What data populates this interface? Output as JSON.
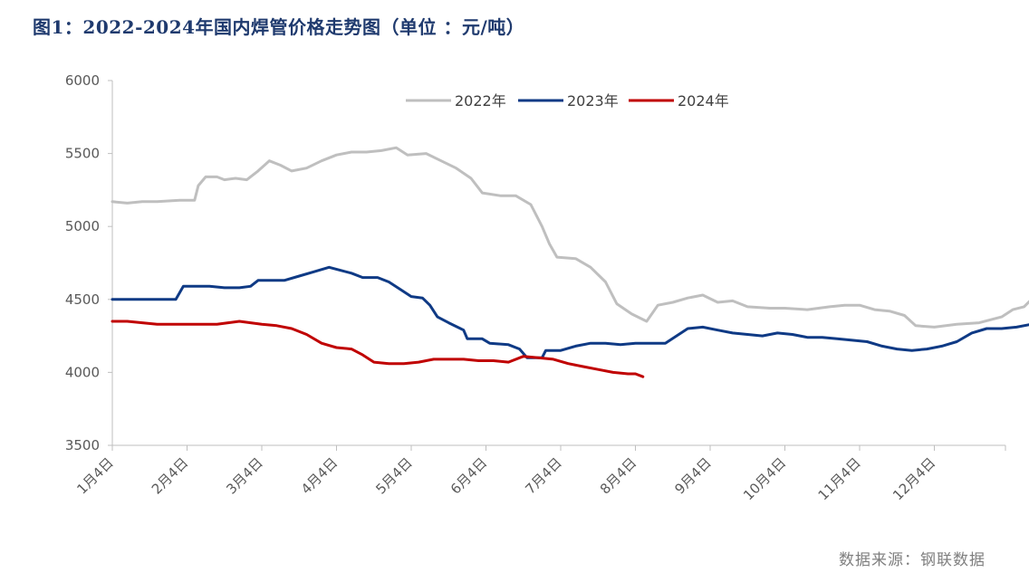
{
  "title": "图1：2022-2024年国内焊管价格走势图（单位 ：元/吨）",
  "source": "数据来源：钢联数据",
  "chart_data": {
    "type": "line",
    "title": "图1：2022-2024年国内焊管价格走势图（单位 ：元/吨）",
    "xlabel": "",
    "ylabel": "",
    "ylim": [
      3500,
      6000
    ],
    "yticks": [
      3500,
      4000,
      4500,
      5000,
      5500,
      6000
    ],
    "categories": [
      "1月4日",
      "2月4日",
      "3月4日",
      "4月4日",
      "5月4日",
      "6月4日",
      "7月4日",
      "8月4日",
      "9月4日",
      "10月4日",
      "11月4日",
      "12月4日"
    ],
    "grid": false,
    "legend_position": "top",
    "series": [
      {
        "name": "2022年",
        "color": "#bfbfbf",
        "points": [
          [
            0,
            5170
          ],
          [
            0.2,
            5160
          ],
          [
            0.4,
            5170
          ],
          [
            0.6,
            5170
          ],
          [
            0.9,
            5180
          ],
          [
            1.1,
            5180
          ],
          [
            1.15,
            5280
          ],
          [
            1.25,
            5340
          ],
          [
            1.4,
            5340
          ],
          [
            1.5,
            5320
          ],
          [
            1.65,
            5330
          ],
          [
            1.8,
            5320
          ],
          [
            1.95,
            5380
          ],
          [
            2.1,
            5450
          ],
          [
            2.25,
            5420
          ],
          [
            2.4,
            5380
          ],
          [
            2.6,
            5400
          ],
          [
            2.8,
            5450
          ],
          [
            3.0,
            5490
          ],
          [
            3.2,
            5510
          ],
          [
            3.4,
            5510
          ],
          [
            3.6,
            5520
          ],
          [
            3.8,
            5540
          ],
          [
            3.95,
            5490
          ],
          [
            4.2,
            5500
          ],
          [
            4.4,
            5450
          ],
          [
            4.6,
            5400
          ],
          [
            4.8,
            5330
          ],
          [
            4.95,
            5230
          ],
          [
            5.2,
            5210
          ],
          [
            5.4,
            5210
          ],
          [
            5.6,
            5150
          ],
          [
            5.75,
            5000
          ],
          [
            5.85,
            4880
          ],
          [
            5.95,
            4790
          ],
          [
            6.2,
            4780
          ],
          [
            6.4,
            4720
          ],
          [
            6.6,
            4620
          ],
          [
            6.75,
            4470
          ],
          [
            6.95,
            4400
          ],
          [
            7.15,
            4350
          ],
          [
            7.3,
            4460
          ],
          [
            7.5,
            4480
          ],
          [
            7.7,
            4510
          ],
          [
            7.9,
            4530
          ],
          [
            8.1,
            4480
          ],
          [
            8.3,
            4490
          ],
          [
            8.5,
            4450
          ],
          [
            8.8,
            4440
          ],
          [
            9.0,
            4440
          ],
          [
            9.3,
            4430
          ],
          [
            9.6,
            4450
          ],
          [
            9.8,
            4460
          ],
          [
            10.0,
            4460
          ],
          [
            10.2,
            4430
          ],
          [
            10.4,
            4420
          ],
          [
            10.6,
            4390
          ],
          [
            10.75,
            4320
          ],
          [
            11.0,
            4310
          ],
          [
            11.3,
            4330
          ],
          [
            11.6,
            4340
          ],
          [
            11.9,
            4380
          ],
          [
            12.05,
            4430
          ],
          [
            12.2,
            4450
          ],
          [
            12.3,
            4500
          ],
          [
            12.5,
            4490
          ],
          [
            12.7,
            4490
          ],
          [
            12.9,
            4490
          ]
        ]
      },
      {
        "name": "2023年",
        "color": "#0f3a85",
        "points": [
          [
            0,
            4500
          ],
          [
            0.3,
            4500
          ],
          [
            0.6,
            4500
          ],
          [
            0.85,
            4500
          ],
          [
            0.95,
            4590
          ],
          [
            1.1,
            4590
          ],
          [
            1.3,
            4590
          ],
          [
            1.5,
            4580
          ],
          [
            1.7,
            4580
          ],
          [
            1.85,
            4590
          ],
          [
            1.95,
            4630
          ],
          [
            2.1,
            4630
          ],
          [
            2.3,
            4630
          ],
          [
            2.5,
            4660
          ],
          [
            2.7,
            4690
          ],
          [
            2.9,
            4720
          ],
          [
            3.05,
            4700
          ],
          [
            3.2,
            4680
          ],
          [
            3.35,
            4650
          ],
          [
            3.55,
            4650
          ],
          [
            3.7,
            4620
          ],
          [
            3.85,
            4570
          ],
          [
            4.0,
            4520
          ],
          [
            4.15,
            4510
          ],
          [
            4.25,
            4460
          ],
          [
            4.35,
            4380
          ],
          [
            4.5,
            4340
          ],
          [
            4.7,
            4290
          ],
          [
            4.75,
            4230
          ],
          [
            4.95,
            4230
          ],
          [
            5.05,
            4200
          ],
          [
            5.3,
            4190
          ],
          [
            5.45,
            4160
          ],
          [
            5.55,
            4100
          ],
          [
            5.75,
            4100
          ],
          [
            5.8,
            4150
          ],
          [
            6.0,
            4150
          ],
          [
            6.2,
            4180
          ],
          [
            6.4,
            4200
          ],
          [
            6.6,
            4200
          ],
          [
            6.8,
            4190
          ],
          [
            7.0,
            4200
          ],
          [
            7.2,
            4200
          ],
          [
            7.4,
            4200
          ],
          [
            7.55,
            4250
          ],
          [
            7.7,
            4300
          ],
          [
            7.9,
            4310
          ],
          [
            8.1,
            4290
          ],
          [
            8.3,
            4270
          ],
          [
            8.5,
            4260
          ],
          [
            8.7,
            4250
          ],
          [
            8.9,
            4270
          ],
          [
            9.1,
            4260
          ],
          [
            9.3,
            4240
          ],
          [
            9.5,
            4240
          ],
          [
            9.7,
            4230
          ],
          [
            9.9,
            4220
          ],
          [
            10.1,
            4210
          ],
          [
            10.3,
            4180
          ],
          [
            10.5,
            4160
          ],
          [
            10.7,
            4150
          ],
          [
            10.9,
            4160
          ],
          [
            11.1,
            4180
          ],
          [
            11.3,
            4210
          ],
          [
            11.5,
            4270
          ],
          [
            11.7,
            4300
          ],
          [
            11.9,
            4300
          ],
          [
            12.1,
            4310
          ],
          [
            12.3,
            4330
          ],
          [
            12.5,
            4340
          ],
          [
            12.7,
            4330
          ],
          [
            12.9,
            4340
          ]
        ]
      },
      {
        "name": "2024年",
        "color": "#c00000",
        "points": [
          [
            0,
            4350
          ],
          [
            0.2,
            4350
          ],
          [
            0.4,
            4340
          ],
          [
            0.6,
            4330
          ],
          [
            0.8,
            4330
          ],
          [
            1.0,
            4330
          ],
          [
            1.2,
            4330
          ],
          [
            1.4,
            4330
          ],
          [
            1.55,
            4340
          ],
          [
            1.7,
            4350
          ],
          [
            1.85,
            4340
          ],
          [
            2.0,
            4330
          ],
          [
            2.2,
            4320
          ],
          [
            2.4,
            4300
          ],
          [
            2.6,
            4260
          ],
          [
            2.8,
            4200
          ],
          [
            3.0,
            4170
          ],
          [
            3.2,
            4160
          ],
          [
            3.35,
            4120
          ],
          [
            3.5,
            4070
          ],
          [
            3.7,
            4060
          ],
          [
            3.9,
            4060
          ],
          [
            4.1,
            4070
          ],
          [
            4.3,
            4090
          ],
          [
            4.5,
            4090
          ],
          [
            4.7,
            4090
          ],
          [
            4.9,
            4080
          ],
          [
            5.1,
            4080
          ],
          [
            5.3,
            4070
          ],
          [
            5.5,
            4110
          ],
          [
            5.7,
            4100
          ],
          [
            5.9,
            4090
          ],
          [
            6.1,
            4060
          ],
          [
            6.3,
            4040
          ],
          [
            6.5,
            4020
          ],
          [
            6.7,
            4000
          ],
          [
            6.9,
            3990
          ],
          [
            7.0,
            3990
          ],
          [
            7.1,
            3970
          ]
        ]
      }
    ]
  }
}
